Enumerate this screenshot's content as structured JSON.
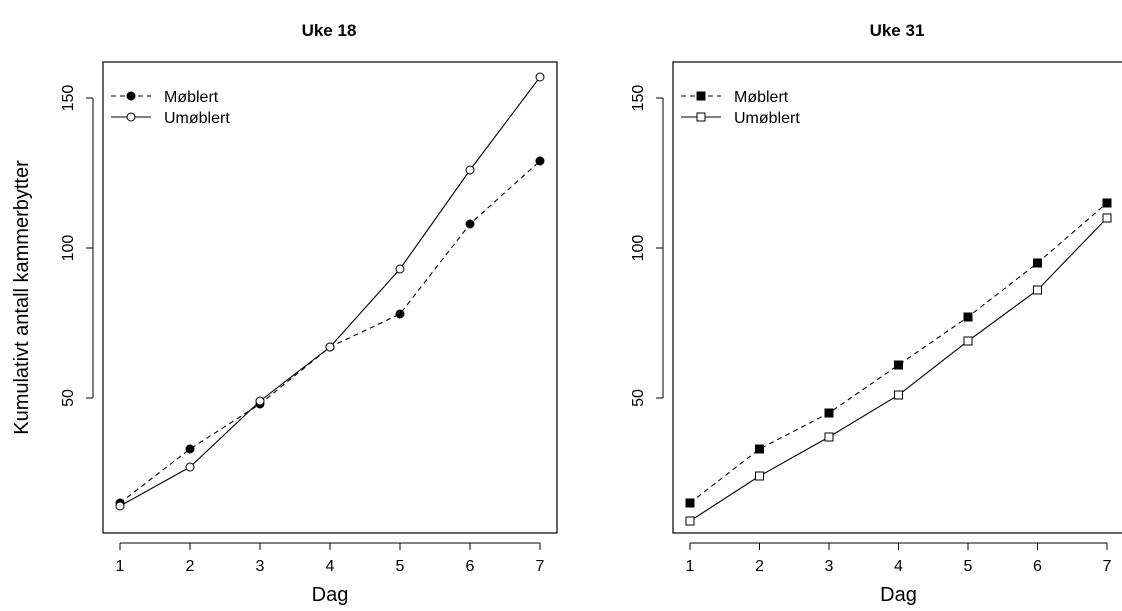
{
  "chart_data": [
    {
      "type": "line",
      "title": "Uke 18",
      "xlabel": "Dag",
      "ylabel": "Kumulativt antall kammerbytter",
      "x": [
        1,
        2,
        3,
        4,
        5,
        6,
        7
      ],
      "xticks": [
        "1",
        "2",
        "3",
        "4",
        "5",
        "6",
        "7"
      ],
      "yticks": [
        "50",
        "100",
        "150"
      ],
      "ylim": [
        5,
        162
      ],
      "grid": false,
      "legend_position": "top-left",
      "series": [
        {
          "name": "Møblert",
          "values": [
            15,
            33,
            48,
            67,
            78,
            108,
            129
          ],
          "line": "dashed",
          "marker": "filled-circle"
        },
        {
          "name": "Umøblert",
          "values": [
            14,
            27,
            49,
            67,
            93,
            126,
            157
          ],
          "line": "solid",
          "marker": "open-circle"
        }
      ]
    },
    {
      "type": "line",
      "title": "Uke 31",
      "xlabel": "Dag",
      "ylabel": "",
      "x": [
        1,
        2,
        3,
        4,
        5,
        6,
        7
      ],
      "xticks": [
        "1",
        "2",
        "3",
        "4",
        "5",
        "6",
        "7"
      ],
      "yticks": [
        "50",
        "100",
        "150"
      ],
      "ylim": [
        5,
        162
      ],
      "grid": false,
      "legend_position": "top-left",
      "series": [
        {
          "name": "Møblert",
          "values": [
            15,
            33,
            45,
            61,
            77,
            95,
            115
          ],
          "line": "dashed",
          "marker": "filled-square"
        },
        {
          "name": "Umøblert",
          "values": [
            9,
            24,
            37,
            51,
            69,
            86,
            110
          ],
          "line": "solid",
          "marker": "open-square"
        }
      ]
    }
  ]
}
